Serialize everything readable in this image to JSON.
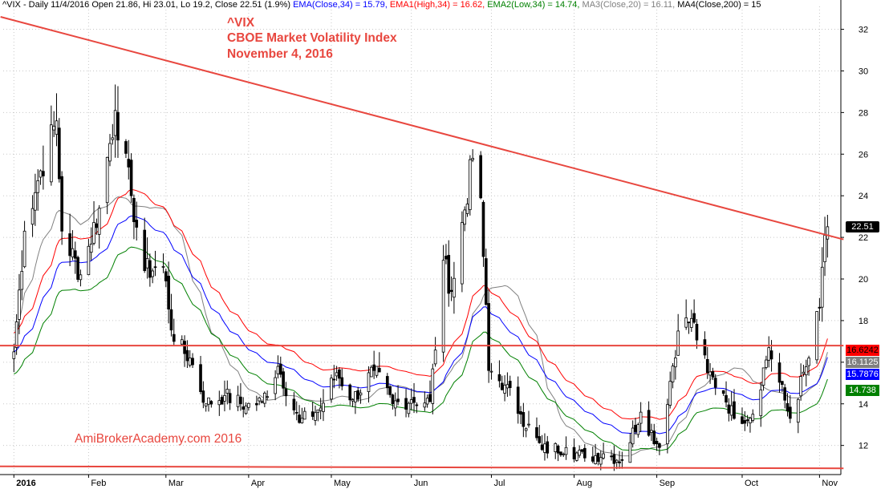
{
  "header": {
    "prefix": "^VIX - Daily 11/4/2016 Open 21.86, Hi 23.01, Lo 19.2, Close 22.51 (1.9%)",
    "ema_label": " EMA(Close,34) = 15.79,",
    "ema1_label": " EMA1(High,34) = 16.62,",
    "ema2_label": " EMA2(Low,34) = 14.74,",
    "ma3_label": " MA3(Close,20) = 16.11,",
    "ma4_label": " MA4(Close,200) = 15"
  },
  "annotation": {
    "symbol": "^VIX",
    "name": "CBOE Market Volatility Index",
    "date": "November 4, 2016"
  },
  "watermark": "AmiBrokerAcademy.com  2016",
  "price_labels": {
    "last": "22.51",
    "ema1": "16.6242",
    "ma3": "16.1125",
    "ema": "15.7876",
    "ema2": "14.738"
  },
  "colors": {
    "trend_line": "#e8473f",
    "candle": "#000000",
    "ema": "#0000ff",
    "ema1": "#ff0000",
    "ema2": "#008000",
    "ma3": "#808080",
    "grid": "#c8c8c8",
    "annotation": "#e8473f"
  },
  "chart_data": {
    "type": "candlestick",
    "title": "^VIX",
    "y_axis_position": "right",
    "ylim": [
      10.6,
      33.1
    ],
    "y_ticks": [
      12,
      14,
      16,
      18,
      20,
      22,
      24,
      26,
      28,
      30,
      32
    ],
    "x_tick_labels": [
      "2016",
      "Feb",
      "Mar",
      "Apr",
      "May",
      "Jun",
      "Jul",
      "Aug",
      "Sep",
      "Oct",
      "Nov"
    ],
    "x_tick_dates": [
      "2016-01-04",
      "2016-02-01",
      "2016-03-01",
      "2016-04-01",
      "2016-05-02",
      "2016-06-01",
      "2016-07-01",
      "2016-08-01",
      "2016-09-01",
      "2016-10-03",
      "2016-11-01"
    ],
    "grid": true,
    "trend_lines": [
      {
        "from": {
          "date": "2015-12-30",
          "value": 32.6
        },
        "to": {
          "date": "2016-11-10",
          "value": 21.9
        }
      },
      {
        "from": {
          "date": "2015-12-20",
          "value": 16.8
        },
        "to": {
          "date": "2016-11-10",
          "value": 16.8
        }
      },
      {
        "from": {
          "date": "2015-12-20",
          "value": 11.0
        },
        "to": {
          "date": "2016-11-10",
          "value": 10.9
        }
      }
    ],
    "closes": [
      [
        "2016-01-04",
        16.5
      ],
      [
        "2016-01-08",
        22.3
      ],
      [
        "2016-01-14",
        25.2
      ],
      [
        "2016-01-20",
        27.6
      ],
      [
        "2016-01-22",
        22.3
      ],
      [
        "2016-01-29",
        20.2
      ],
      [
        "2016-02-05",
        23.4
      ],
      [
        "2016-02-11",
        28.1
      ],
      [
        "2016-02-17",
        24.0
      ],
      [
        "2016-02-22",
        20.4
      ],
      [
        "2016-02-29",
        20.6
      ],
      [
        "2016-03-04",
        17.0
      ],
      [
        "2016-03-10",
        16.2
      ],
      [
        "2016-03-16",
        14.0
      ],
      [
        "2016-03-23",
        14.4
      ],
      [
        "2016-03-31",
        13.9
      ],
      [
        "2016-04-06",
        14.1
      ],
      [
        "2016-04-12",
        15.8
      ],
      [
        "2016-04-20",
        13.1
      ],
      [
        "2016-04-28",
        13.8
      ],
      [
        "2016-05-04",
        15.5
      ],
      [
        "2016-05-10",
        14.2
      ],
      [
        "2016-05-18",
        15.6
      ],
      [
        "2016-05-25",
        14.0
      ],
      [
        "2016-06-01",
        14.2
      ],
      [
        "2016-06-08",
        14.1
      ],
      [
        "2016-06-13",
        20.9
      ],
      [
        "2016-06-16",
        19.4
      ],
      [
        "2016-06-24",
        25.8
      ],
      [
        "2016-06-27",
        23.9
      ],
      [
        "2016-06-30",
        15.6
      ],
      [
        "2016-07-06",
        14.9
      ],
      [
        "2016-07-12",
        13.5
      ],
      [
        "2016-07-20",
        11.8
      ],
      [
        "2016-07-29",
        11.9
      ],
      [
        "2016-08-05",
        11.4
      ],
      [
        "2016-08-12",
        11.6
      ],
      [
        "2016-08-19",
        11.3
      ],
      [
        "2016-08-26",
        13.6
      ],
      [
        "2016-09-02",
        11.9
      ],
      [
        "2016-09-09",
        17.5
      ],
      [
        "2016-09-14",
        18.1
      ],
      [
        "2016-09-20",
        15.5
      ],
      [
        "2016-09-26",
        14.5
      ],
      [
        "2016-09-30",
        13.3
      ],
      [
        "2016-10-07",
        13.5
      ],
      [
        "2016-10-13",
        16.7
      ],
      [
        "2016-10-21",
        13.3
      ],
      [
        "2016-10-28",
        16.2
      ],
      [
        "2016-11-01",
        18.6
      ],
      [
        "2016-11-03",
        22.1
      ],
      [
        "2016-11-04",
        22.51
      ]
    ],
    "last_values": {
      "close": 22.51,
      "ema": 15.7876,
      "ema1": 16.6242,
      "ema2": 14.738,
      "ma3": 16.1125
    }
  }
}
